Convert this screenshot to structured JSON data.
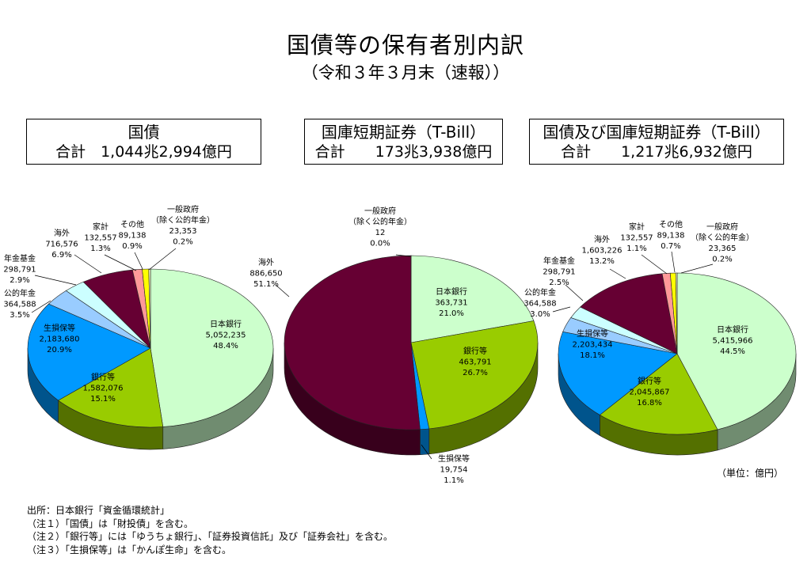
{
  "title": "国債等の保有者別内訳",
  "subtitle": "（令和３年３月末（速報））",
  "unit": "（単位：億円）",
  "notes": [
    "出所：日本銀行「資金循環統計」",
    "（注１）「国債」は「財投債」を含む。",
    "（注２）「銀行等」には「ゆうちょ銀行」、「証券投資信託」及び「証券会社」を含む。",
    "（注３）「生損保等」は「かんぽ生命」を含む。"
  ],
  "colors": {
    "日本銀行": "#ccffcc",
    "銀行等": "#99cc00",
    "生損保等": "#0099ff",
    "公的年金": "#99ccff",
    "年金基金": "#ccffff",
    "海外": "#660033",
    "家計": "#ff9999",
    "その他": "#ffff00",
    "一般政府": "#ffffcc"
  },
  "chart_data": [
    {
      "type": "pie",
      "title": "国債",
      "total": "合計　1,044兆2,994億円",
      "slices": [
        {
          "name": "日本銀行",
          "value": 5052235,
          "value_label": "5,052,235",
          "pct": "48.4%"
        },
        {
          "name": "銀行等",
          "value": 1582076,
          "value_label": "1,582,076",
          "pct": "15.1%"
        },
        {
          "name": "生損保等",
          "value": 2183680,
          "value_label": "2,183,680",
          "pct": "20.9%"
        },
        {
          "name": "公的年金",
          "value": 364588,
          "value_label": "364,588",
          "pct": "3.5%"
        },
        {
          "name": "年金基金",
          "value": 298791,
          "value_label": "298,791",
          "pct": "2.9%"
        },
        {
          "name": "海外",
          "value": 716576,
          "value_label": "716,576",
          "pct": "6.9%"
        },
        {
          "name": "家計",
          "value": 132557,
          "value_label": "132,557",
          "pct": "1.3%"
        },
        {
          "name": "その他",
          "value": 89138,
          "value_label": "89,138",
          "pct": "0.9%"
        },
        {
          "name": "一般政府\n（除く公的年金）",
          "value": 23353,
          "value_label": "23,353",
          "pct": "0.2%"
        }
      ]
    },
    {
      "type": "pie",
      "title": "国庫短期証券（T-Bill）",
      "total": "合計　　173兆3,938億円",
      "slices": [
        {
          "name": "日本銀行",
          "value": 363731,
          "value_label": "363,731",
          "pct": "21.0%"
        },
        {
          "name": "銀行等",
          "value": 463791,
          "value_label": "463,791",
          "pct": "26.7%"
        },
        {
          "name": "生損保等",
          "value": 19754,
          "value_label": "19,754",
          "pct": "1.1%"
        },
        {
          "name": "海外",
          "value": 886650,
          "value_label": "886,650",
          "pct": "51.1%"
        },
        {
          "name": "一般政府\n（除く公的年金）",
          "value": 12,
          "value_label": "12",
          "pct": "0.0%"
        }
      ]
    },
    {
      "type": "pie",
      "title": "国債及び国庫短期証券（T-Bill）",
      "total": "合計　　1,217兆6,932億円",
      "slices": [
        {
          "name": "日本銀行",
          "value": 5415966,
          "value_label": "5,415,966",
          "pct": "44.5%"
        },
        {
          "name": "銀行等",
          "value": 2045867,
          "value_label": "2,045,867",
          "pct": "16.8%"
        },
        {
          "name": "生損保等",
          "value": 2203434,
          "value_label": "2,203,434",
          "pct": "18.1%"
        },
        {
          "name": "公的年金",
          "value": 364588,
          "value_label": "364,588",
          "pct": "3.0%"
        },
        {
          "name": "年金基金",
          "value": 298791,
          "value_label": "298,791",
          "pct": "2.5%"
        },
        {
          "name": "海外",
          "value": 1603226,
          "value_label": "1,603,226",
          "pct": "13.2%"
        },
        {
          "name": "家計",
          "value": 132557,
          "value_label": "132,557",
          "pct": "1.1%"
        },
        {
          "name": "その他",
          "value": 89138,
          "value_label": "89,138",
          "pct": "0.7%"
        },
        {
          "name": "一般政府\n（除く公的年金）",
          "value": 23365,
          "value_label": "23,365",
          "pct": "0.2%"
        }
      ]
    }
  ]
}
